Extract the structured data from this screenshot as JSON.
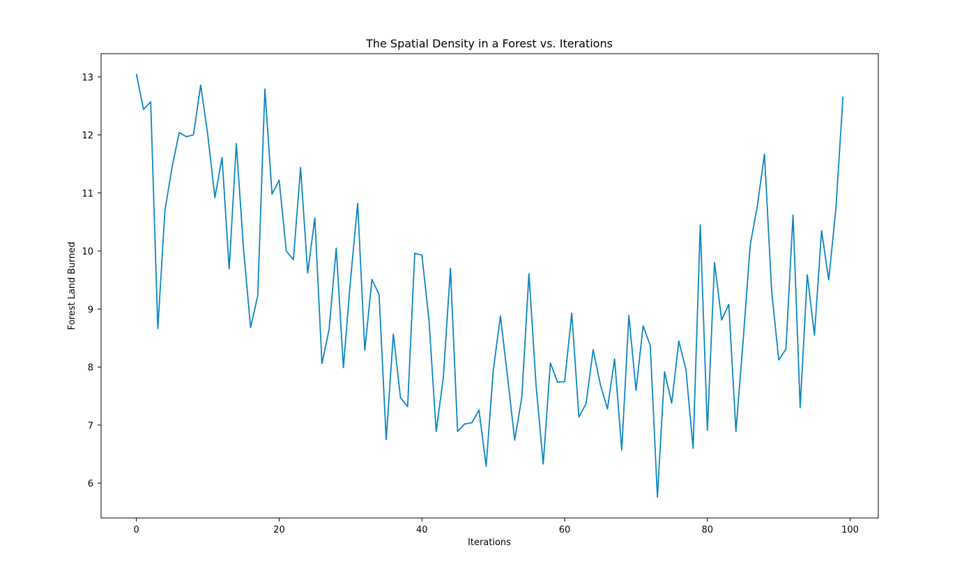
{
  "chart_data": {
    "type": "line",
    "title": "The Spatial Density in a Forest vs. Iterations",
    "xlabel": "Iterations",
    "ylabel": "Forest Land Burned",
    "xlim": [
      -4.95,
      103.95
    ],
    "ylim": [
      5.4,
      13.4
    ],
    "xticks": [
      0,
      20,
      40,
      60,
      80,
      100
    ],
    "yticks": [
      6,
      7,
      8,
      9,
      10,
      11,
      12,
      13
    ],
    "grid": false,
    "legend": null,
    "line_color": "#0a85c2",
    "series": [
      {
        "x": [
          0,
          1,
          2,
          3,
          4,
          5,
          6,
          7,
          8,
          9,
          10,
          11,
          12,
          13,
          14,
          15,
          16,
          17,
          18,
          19,
          20,
          21,
          22,
          23,
          24,
          25,
          26,
          27,
          28,
          29,
          30,
          31,
          32,
          33,
          34,
          35,
          36,
          37,
          38,
          39,
          40,
          41,
          42,
          43,
          44,
          45,
          46,
          47,
          48,
          49,
          50,
          51,
          52,
          53,
          54,
          55,
          56,
          57,
          58,
          59,
          60,
          61,
          62,
          63,
          64,
          65,
          66,
          67,
          68,
          69,
          70,
          71,
          72,
          73,
          74,
          75,
          76,
          77,
          78,
          79,
          80,
          81,
          82,
          83,
          84,
          85,
          86,
          87,
          88,
          89,
          90,
          91,
          92,
          93,
          94,
          95,
          96,
          97,
          98,
          99
        ],
        "y": [
          13.05,
          12.44,
          12.57,
          8.66,
          10.7,
          11.45,
          12.04,
          11.97,
          12.0,
          12.86,
          12.0,
          10.92,
          11.61,
          9.69,
          11.85,
          10.05,
          8.68,
          9.23,
          12.79,
          10.98,
          11.22,
          10.0,
          9.85,
          11.44,
          9.62,
          10.57,
          8.06,
          8.65,
          10.05,
          7.99,
          9.5,
          10.82,
          8.29,
          9.51,
          9.25,
          6.75,
          8.57,
          7.47,
          7.32,
          9.96,
          9.93,
          8.8,
          6.89,
          7.82,
          9.7,
          6.89,
          7.02,
          7.04,
          7.26,
          6.29,
          7.94,
          8.88,
          7.83,
          6.74,
          7.48,
          9.61,
          7.68,
          6.33,
          8.07,
          7.74,
          7.75,
          8.93,
          7.14,
          7.37,
          8.3,
          7.7,
          7.28,
          8.14,
          6.57,
          8.89,
          7.6,
          8.71,
          8.37,
          5.76,
          7.92,
          7.38,
          8.45,
          7.95,
          6.6,
          10.45,
          6.91,
          9.8,
          8.81,
          9.08,
          6.89,
          8.44,
          10.1,
          10.78,
          11.67,
          9.32,
          8.12,
          8.31,
          10.62,
          7.3,
          9.59,
          8.55,
          10.35,
          9.5,
          10.72,
          12.66
        ]
      }
    ]
  }
}
